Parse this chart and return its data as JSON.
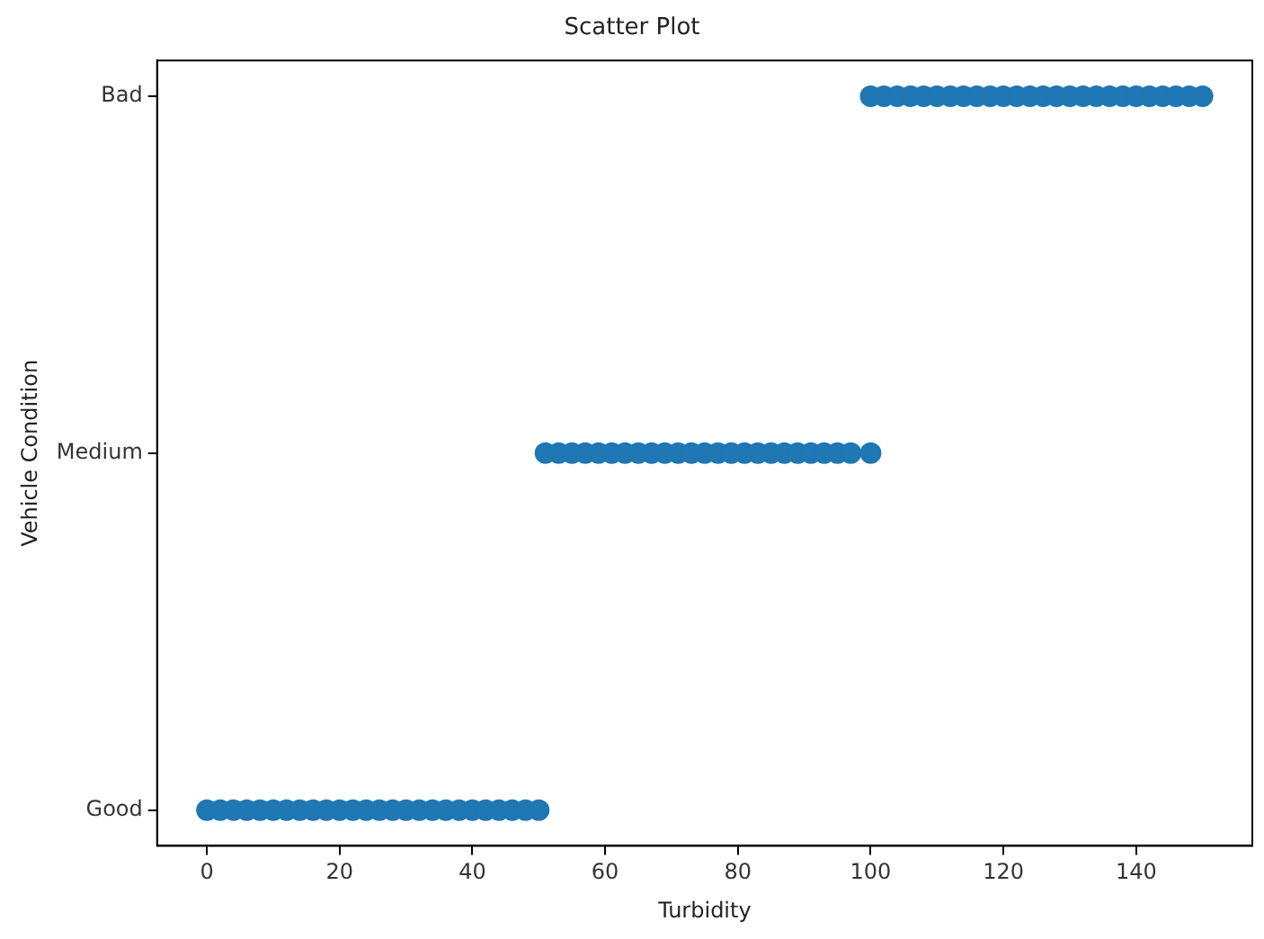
{
  "chart_data": {
    "type": "scatter",
    "title": "Scatter Plot",
    "xlabel": "Turbidity",
    "ylabel": "Vehicle Condition",
    "orientation": "horizontal",
    "categories": [
      "Bad",
      "Medium",
      "Good"
    ],
    "xlim": [
      -7.5,
      157.5
    ],
    "xticks": [
      0,
      20,
      40,
      60,
      80,
      100,
      120,
      140
    ],
    "marker": "circle",
    "grid": false,
    "legend": false,
    "series": [
      {
        "color": "#1f77b4",
        "x": [
          "Good",
          "Good",
          "Good",
          "Good",
          "Good",
          "Good",
          "Good",
          "Good",
          "Good",
          "Good",
          "Good",
          "Good",
          "Good",
          "Good",
          "Good",
          "Good",
          "Good",
          "Good",
          "Good",
          "Good",
          "Good",
          "Good",
          "Good",
          "Good",
          "Good",
          "Good"
        ],
        "values": [
          0,
          2,
          4,
          6,
          8,
          10,
          12,
          14,
          16,
          18,
          20,
          22,
          24,
          26,
          28,
          30,
          32,
          34,
          36,
          38,
          40,
          42,
          44,
          46,
          48,
          50
        ]
      },
      {
        "color": "#1f77b4",
        "x": [
          "Medium",
          "Medium",
          "Medium",
          "Medium",
          "Medium",
          "Medium",
          "Medium",
          "Medium",
          "Medium",
          "Medium",
          "Medium",
          "Medium",
          "Medium",
          "Medium",
          "Medium",
          "Medium",
          "Medium",
          "Medium",
          "Medium",
          "Medium",
          "Medium",
          "Medium",
          "Medium",
          "Medium",
          "Medium"
        ],
        "values": [
          51,
          53,
          55,
          57,
          59,
          61,
          63,
          65,
          67,
          69,
          71,
          73,
          75,
          77,
          79,
          81,
          83,
          85,
          87,
          89,
          91,
          93,
          95,
          97,
          100
        ]
      },
      {
        "color": "#1f77b4",
        "x": [
          "Bad",
          "Bad",
          "Bad",
          "Bad",
          "Bad",
          "Bad",
          "Bad",
          "Bad",
          "Bad",
          "Bad",
          "Bad",
          "Bad",
          "Bad",
          "Bad",
          "Bad",
          "Bad",
          "Bad",
          "Bad",
          "Bad",
          "Bad",
          "Bad",
          "Bad",
          "Bad",
          "Bad",
          "Bad",
          "Bad"
        ],
        "values": [
          100,
          102,
          104,
          106,
          108,
          110,
          112,
          114,
          116,
          118,
          120,
          122,
          124,
          126,
          128,
          130,
          132,
          134,
          136,
          138,
          140,
          142,
          144,
          146,
          148,
          150
        ]
      }
    ]
  }
}
